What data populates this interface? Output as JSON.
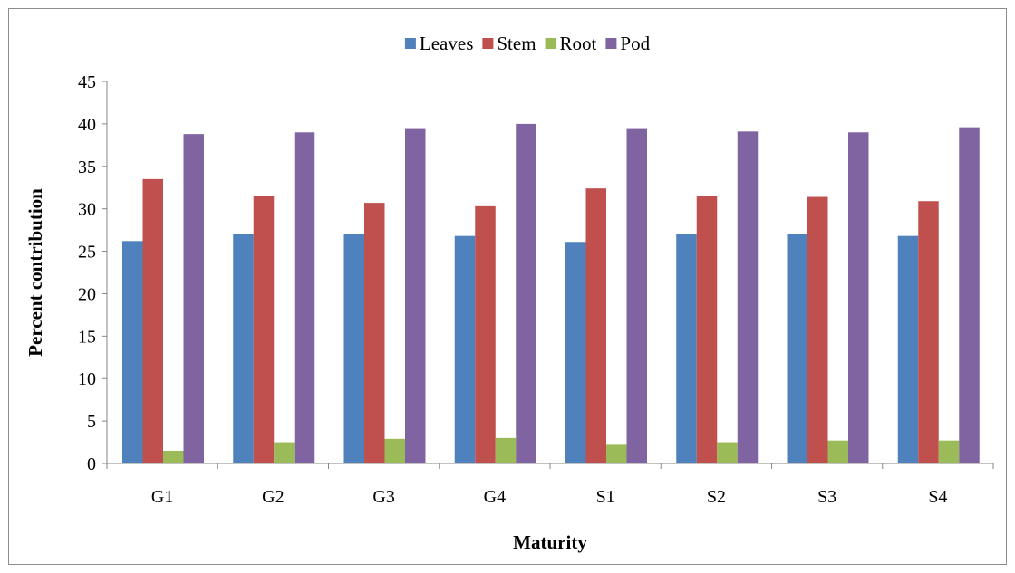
{
  "chart_data": {
    "type": "bar",
    "categories": [
      "G1",
      "G2",
      "G3",
      "G4",
      "S1",
      "S2",
      "S3",
      "S4"
    ],
    "series": [
      {
        "name": "Leaves",
        "color": "#4f81bd",
        "values": [
          26.2,
          27.0,
          27.0,
          26.8,
          26.1,
          27.0,
          27.0,
          26.8
        ]
      },
      {
        "name": "Stem",
        "color": "#c0504d",
        "values": [
          33.5,
          31.5,
          30.7,
          30.3,
          32.4,
          31.5,
          31.4,
          30.9
        ]
      },
      {
        "name": "Root",
        "color": "#9bbb59",
        "values": [
          1.5,
          2.5,
          2.9,
          3.0,
          2.2,
          2.5,
          2.7,
          2.7
        ]
      },
      {
        "name": "Pod",
        "color": "#8064a2",
        "values": [
          38.8,
          39.0,
          39.5,
          40.0,
          39.5,
          39.1,
          39.0,
          39.6
        ]
      }
    ],
    "title": "",
    "xlabel": "Maturity",
    "ylabel": "Percent contribution",
    "ylim": [
      0,
      45
    ],
    "yticks": [
      0,
      5,
      10,
      15,
      20,
      25,
      30,
      35,
      40,
      45
    ],
    "grid": false,
    "legend_position": "top"
  }
}
